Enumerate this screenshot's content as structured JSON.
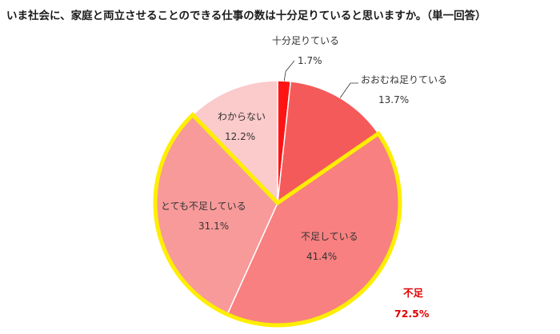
{
  "chart_data": {
    "type": "pie",
    "title": "いま社会に、家庭と両立させることのできる仕事の数は十分足りていると思いますか。（単一回答）",
    "slices": [
      {
        "label": "十分足りている",
        "value": 1.7,
        "value_text": "1.7%",
        "color": "#ff1414"
      },
      {
        "label": "おおむね足りている",
        "value": 13.7,
        "value_text": "13.7%",
        "color": "#f55a5a"
      },
      {
        "label": "不足している",
        "value": 41.4,
        "value_text": "41.4%",
        "color": "#f88080"
      },
      {
        "label": "とても不足している",
        "value": 31.1,
        "value_text": "31.1%",
        "color": "#f89a9a"
      },
      {
        "label": "わからない",
        "value": 12.2,
        "value_text": "12.2%",
        "color": "#fbcaca"
      }
    ],
    "start_angle": "12 o'clock, clockwise",
    "highlight": {
      "label": "不足",
      "value_text": "72.5%",
      "covers": [
        "不足している",
        "とても不足している"
      ],
      "outline_color": "#ffee00",
      "text_color": "#e00000"
    }
  }
}
